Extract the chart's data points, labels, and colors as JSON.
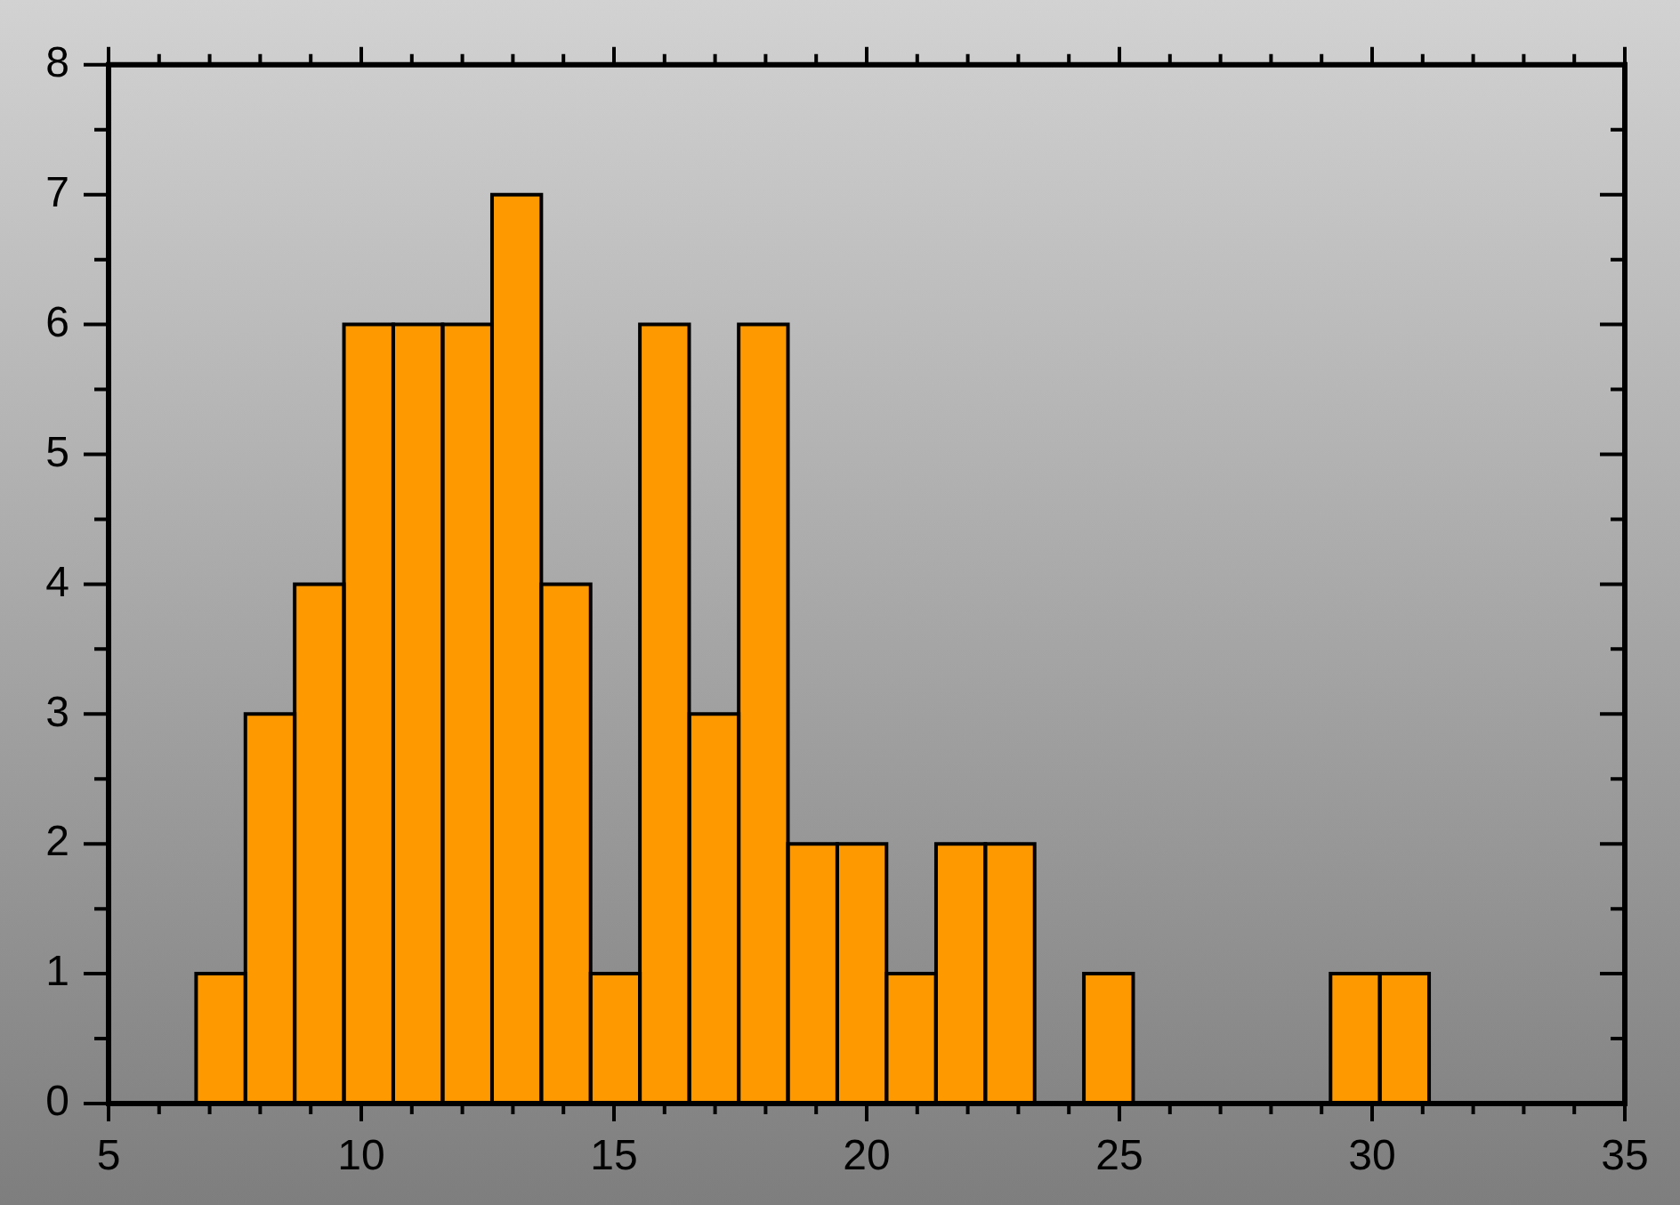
{
  "chart_data": {
    "type": "histogram",
    "bins": [
      6.73,
      7.71,
      8.68,
      9.66,
      10.63,
      11.61,
      12.59,
      13.56,
      14.54,
      15.51,
      16.49,
      17.47,
      18.44,
      19.42,
      20.39,
      21.37,
      22.35,
      23.32,
      24.3,
      25.27,
      26.25,
      27.23,
      28.2,
      29.18,
      30.15,
      31.13
    ],
    "values": [
      1,
      3,
      4,
      6,
      6,
      6,
      7,
      4,
      1,
      6,
      3,
      6,
      2,
      2,
      1,
      2,
      2,
      0,
      1,
      0,
      0,
      0,
      0,
      1,
      1
    ],
    "color": "#ff9900",
    "xlim": [
      5,
      35
    ],
    "xticks": [
      5,
      10,
      15,
      20,
      25,
      30,
      35
    ],
    "ylim": [
      0,
      8
    ],
    "yticks": [
      0,
      1,
      2,
      3,
      4,
      5,
      6,
      7,
      8
    ],
    "grid": false,
    "legend": false
  }
}
